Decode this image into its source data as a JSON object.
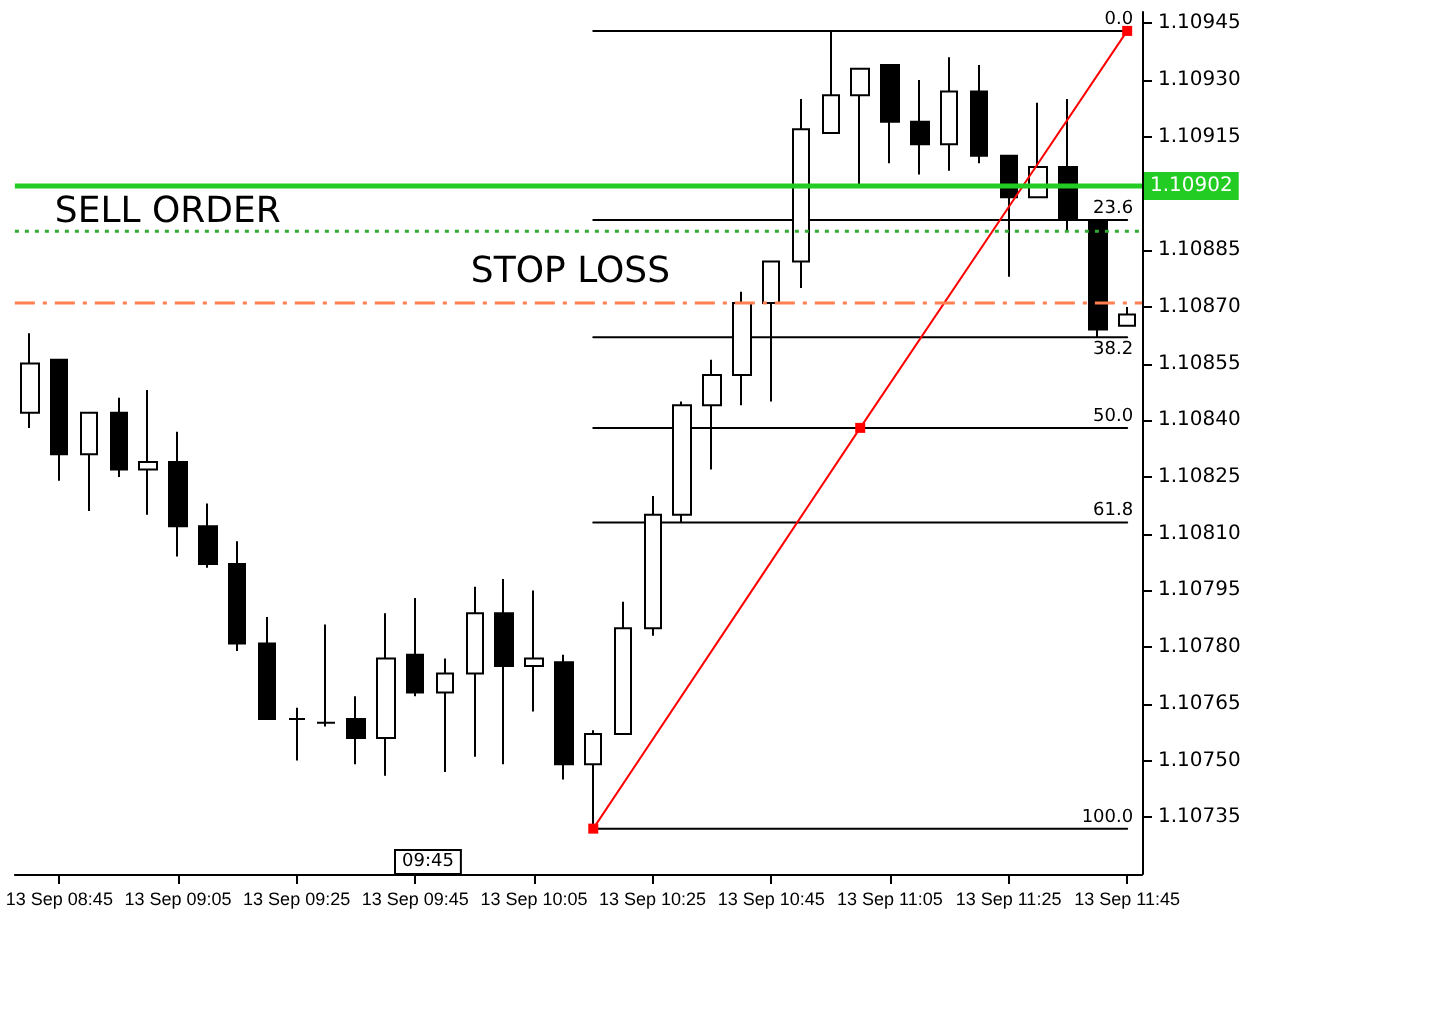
{
  "chart_data": {
    "type": "candlestick",
    "categories": [
      null,
      "13 Sep 08:45",
      null,
      null,
      null,
      "13 Sep 09:05",
      null,
      null,
      null,
      "13 Sep 09:25",
      null,
      null,
      null,
      "13 Sep 09:45",
      null,
      null,
      null,
      "13 Sep 10:05",
      null,
      null,
      null,
      "13 Sep 10:25",
      null,
      null,
      null,
      "13 Sep 10:45",
      null,
      null,
      null,
      "13 Sep 11:05",
      null,
      null,
      null,
      "13 Sep 11:25",
      null,
      null,
      null,
      "13 Sep 11:45"
    ],
    "ohlc": [
      [
        1.10842,
        1.10863,
        1.10838,
        1.10855
      ],
      [
        1.10856,
        1.10856,
        1.10824,
        1.10831
      ],
      [
        1.10831,
        1.10842,
        1.10816,
        1.10842
      ],
      [
        1.10842,
        1.10846,
        1.10825,
        1.10827
      ],
      [
        1.10827,
        1.10848,
        1.10815,
        1.10829
      ],
      [
        1.10829,
        1.10837,
        1.10804,
        1.10812
      ],
      [
        1.10812,
        1.10818,
        1.10801,
        1.10802
      ],
      [
        1.10802,
        1.10808,
        1.10779,
        1.10781
      ],
      [
        1.10781,
        1.10788,
        1.10761,
        1.10761
      ],
      [
        1.10761,
        1.10764,
        1.1075,
        1.10761
      ],
      [
        1.1076,
        1.10786,
        1.10759,
        1.1076
      ],
      [
        1.10761,
        1.10767,
        1.10749,
        1.10756
      ],
      [
        1.10756,
        1.10789,
        1.10746,
        1.10777
      ],
      [
        1.10778,
        1.10793,
        1.10767,
        1.10768
      ],
      [
        1.10768,
        1.10777,
        1.10747,
        1.10773
      ],
      [
        1.10773,
        1.10796,
        1.10751,
        1.10789
      ],
      [
        1.10789,
        1.10798,
        1.10749,
        1.10775
      ],
      [
        1.10775,
        1.10795,
        1.10763,
        1.10777
      ],
      [
        1.10776,
        1.10778,
        1.10745,
        1.10749
      ],
      [
        1.10749,
        1.10758,
        1.10732,
        1.10757
      ],
      [
        1.10757,
        1.10792,
        1.10757,
        1.10785
      ],
      [
        1.10785,
        1.1082,
        1.10783,
        1.10815
      ],
      [
        1.10815,
        1.10845,
        1.10813,
        1.10844
      ],
      [
        1.10844,
        1.10856,
        1.10827,
        1.10852
      ],
      [
        1.10852,
        1.10874,
        1.10844,
        1.10871
      ],
      [
        1.10871,
        1.10882,
        1.10845,
        1.10882
      ],
      [
        1.10882,
        1.10925,
        1.10875,
        1.10917
      ],
      [
        1.10916,
        1.10943,
        1.10916,
        1.10926
      ],
      [
        1.10926,
        1.10933,
        1.10902,
        1.10933
      ],
      [
        1.10934,
        1.10934,
        1.10908,
        1.10919
      ],
      [
        1.10919,
        1.1093,
        1.10905,
        1.10913
      ],
      [
        1.10913,
        1.10936,
        1.10906,
        1.10927
      ],
      [
        1.10927,
        1.10934,
        1.10908,
        1.1091
      ],
      [
        1.1091,
        1.1091,
        1.10878,
        1.10899
      ],
      [
        1.10899,
        1.10924,
        1.10899,
        1.10907
      ],
      [
        1.10907,
        1.10925,
        1.1089,
        1.10893
      ],
      [
        1.10893,
        1.10893,
        1.10862,
        1.10864
      ],
      [
        1.10865,
        1.1087,
        1.10865,
        1.10868
      ]
    ],
    "ylim": [
      1.1072,
      1.10948
    ],
    "yticks": [
      1.10735,
      {
        "value": 1.1075,
        "label": "1.10750"
      },
      1.10765,
      {
        "value": 1.1078,
        "label": "1.10780"
      },
      1.10795,
      {
        "value": 1.1081,
        "label": "1.10810"
      },
      1.10825,
      {
        "value": 1.1084,
        "label": "1.10840"
      },
      1.10855,
      {
        "value": 1.1087,
        "label": "1.10870"
      },
      1.10885,
      {
        "value": 1.109,
        "label": null
      },
      1.10915,
      {
        "value": 1.1093,
        "label": "1.10930"
      },
      1.10945
    ],
    "series": [
      {
        "type": "line",
        "color": "#000000",
        "marker": "none",
        "values": [
          null,
          null,
          null,
          null,
          null,
          null,
          null,
          null,
          null,
          null,
          null,
          null,
          null,
          null,
          null,
          null,
          null,
          null,
          null,
          1.10943,
          null,
          null,
          null,
          null,
          null,
          null,
          null,
          null,
          null,
          null,
          null,
          null,
          null,
          null,
          null,
          null,
          null,
          1.10943
        ]
      },
      {
        "type": "line",
        "color": "#000000",
        "marker": "none",
        "values": [
          null,
          null,
          null,
          null,
          null,
          null,
          null,
          null,
          null,
          null,
          null,
          null,
          null,
          null,
          null,
          null,
          null,
          null,
          null,
          1.10893,
          null,
          null,
          null,
          null,
          null,
          null,
          null,
          null,
          null,
          null,
          null,
          null,
          null,
          null,
          null,
          null,
          null,
          1.10893
        ]
      },
      {
        "type": "line",
        "color": "#000000",
        "marker": "none",
        "values": [
          null,
          null,
          null,
          null,
          null,
          null,
          null,
          null,
          null,
          null,
          null,
          null,
          null,
          null,
          null,
          null,
          null,
          null,
          null,
          1.10862,
          null,
          null,
          null,
          null,
          null,
          null,
          null,
          null,
          null,
          null,
          null,
          null,
          null,
          null,
          null,
          null,
          null,
          1.10862
        ]
      },
      {
        "type": "line",
        "color": "#000000",
        "marker": "none",
        "values": [
          null,
          null,
          null,
          null,
          null,
          null,
          null,
          null,
          null,
          null,
          null,
          null,
          null,
          null,
          null,
          null,
          null,
          null,
          null,
          1.10838,
          null,
          null,
          null,
          null,
          null,
          null,
          null,
          null,
          null,
          null,
          null,
          null,
          null,
          null,
          null,
          null,
          null,
          1.10838
        ]
      },
      {
        "type": "line",
        "color": "#000000",
        "marker": "none",
        "values": [
          null,
          null,
          null,
          null,
          null,
          null,
          null,
          null,
          null,
          null,
          null,
          null,
          null,
          null,
          null,
          null,
          null,
          null,
          null,
          1.10813,
          null,
          null,
          null,
          null,
          null,
          null,
          null,
          null,
          null,
          null,
          null,
          null,
          null,
          null,
          null,
          null,
          null,
          1.10813
        ]
      },
      {
        "type": "line",
        "color": "#000000",
        "marker": "none",
        "values": [
          null,
          null,
          null,
          null,
          null,
          null,
          null,
          null,
          null,
          null,
          null,
          null,
          null,
          null,
          null,
          null,
          null,
          null,
          null,
          1.10732,
          null,
          null,
          null,
          null,
          null,
          null,
          null,
          null,
          null,
          null,
          null,
          null,
          null,
          null,
          null,
          null,
          null,
          1.10732
        ]
      },
      {
        "type": "line",
        "color": "#ff0000",
        "marker": "square",
        "values": [
          null,
          null,
          null,
          null,
          null,
          null,
          null,
          null,
          null,
          null,
          null,
          null,
          null,
          null,
          null,
          null,
          null,
          null,
          null,
          1.10732,
          null,
          null,
          null,
          null,
          null,
          null,
          null,
          null,
          1.10838,
          null,
          null,
          null,
          null,
          null,
          null,
          null,
          null,
          1.10943
        ]
      }
    ],
    "ref_lines": [
      {
        "axis": "y",
        "value": 1.10902,
        "label": "1.10902",
        "color": "#22cc22",
        "line_style": "solid"
      },
      {
        "axis": "y",
        "value": 1.1089,
        "label": "SELL ORDER",
        "color": "#33aa33",
        "line_style": "dotted"
      },
      {
        "axis": "y",
        "value": 1.10871,
        "label": "STOP LOSS",
        "color": "#ff7f50",
        "line_style": "dashed"
      }
    ],
    "annotations": [
      {
        "text": "0.0",
        "y": 1.10943
      },
      {
        "text": "23.6",
        "y": 1.10893
      },
      {
        "text": "38.2",
        "y": 1.10862
      },
      {
        "text": "50.0",
        "y": 1.10838
      },
      {
        "text": "61.8",
        "y": 1.10813
      },
      {
        "text": "100.0",
        "y": 1.10732
      },
      "09:45"
    ]
  }
}
